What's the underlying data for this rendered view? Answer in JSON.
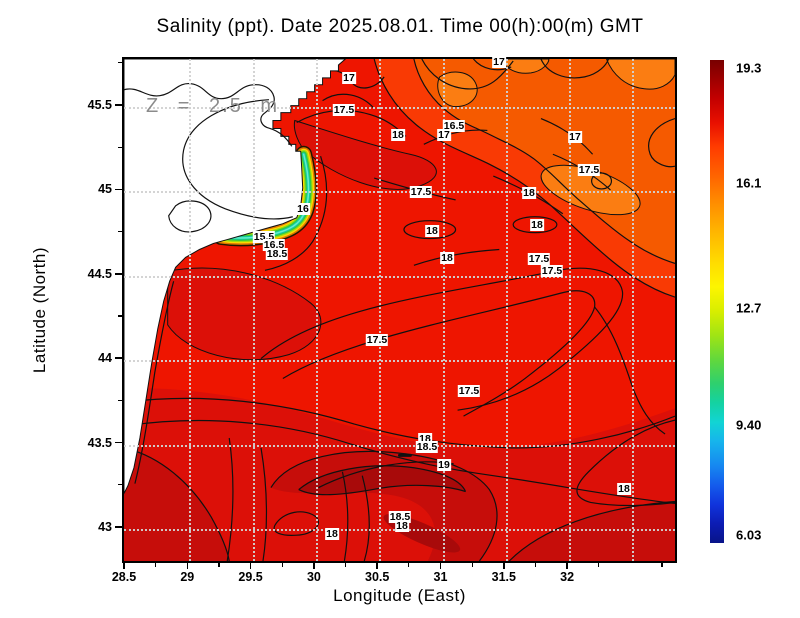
{
  "title": "Salinity (ppt). Date 2025.08.01. Time 00(h):00(m) GMT",
  "annotation": "Z = 2.5 m",
  "axes": {
    "x": {
      "label": "Longitude (East)",
      "ticks": [
        "28.5",
        "29",
        "29.5",
        "30",
        "30.5",
        "31",
        "31.5",
        "32"
      ]
    },
    "y": {
      "label": "Latitude (North)",
      "ticks": [
        "45.5",
        "45",
        "44.5",
        "44",
        "43.5",
        "43"
      ]
    }
  },
  "colorbar": {
    "ticks": [
      {
        "label": "19.3",
        "pos": 1.7
      },
      {
        "label": "16.1",
        "pos": 25.5
      },
      {
        "label": "12.7",
        "pos": 51.3
      },
      {
        "label": "9.40",
        "pos": 75.6
      },
      {
        "label": "6.03",
        "pos": 98.3
      }
    ]
  },
  "palette": {
    "sea_17_5_18": "#ee1500",
    "sea_18_18_5": "#dc1008",
    "sea_18_5_19": "#c60d0a",
    "sea_over_19": "#a80a0a",
    "sea_16_5_17": "#f55a00",
    "sea_16_16_5": "#fb7d12",
    "land": "#ffffff",
    "contour_line": "#111111",
    "grid_dots": "#d2d2d2"
  },
  "chart_data": {
    "type": "heatmap",
    "subtype": "filled-contour-map",
    "title": "Salinity (ppt). Date 2025.08.01. Time 00(h):00(m) GMT",
    "xlabel": "Longitude (East)",
    "ylabel": "Latitude (North)",
    "x_range": [
      28.5,
      32.9
    ],
    "y_range": [
      42.8,
      45.78
    ],
    "x_ticks": [
      28.5,
      29,
      29.5,
      30,
      30.5,
      31,
      31.5,
      32
    ],
    "y_ticks": [
      45.5,
      45,
      44.5,
      44,
      43.5,
      43
    ],
    "grid": "dotted, 0.5 degree spacing",
    "units": "ppt",
    "depth_annotation": "Z = 2.5 m",
    "contour_interval": 0.5,
    "colorbar_tick_values": [
      19.3,
      16.1,
      12.7,
      9.4,
      6.03
    ],
    "colorbar_orientation": "vertical-right",
    "field_summary": "Filled salinity contours of the western Black Sea: low-salinity Danube plume (15-16.5 ppt, green/yellow bands) along the NW coast, 16.5-17.5 ppt (orange) in the NE corner, 17.5-18.5 ppt (red) over most of the basin, and >18.5-19 ppt (dark red) in the south with an anticyclonic swirl near 30.8E 43.3N; white = land with coastline.",
    "contour_labels": [
      {
        "value": "17",
        "px": [
          225,
          19
        ],
        "lon": 30.28,
        "lat": 45.67
      },
      {
        "value": "17",
        "px": [
          375,
          3
        ],
        "lon": 31.46,
        "lat": 45.77
      },
      {
        "value": "17.5",
        "px": [
          220,
          51
        ],
        "lon": 30.24,
        "lat": 45.48
      },
      {
        "value": "18",
        "px": [
          274,
          76
        ],
        "lon": 30.66,
        "lat": 45.33
      },
      {
        "value": "16.5",
        "px": [
          330,
          67
        ],
        "lon": 31.11,
        "lat": 45.39
      },
      {
        "value": "17",
        "px": [
          320,
          76
        ],
        "lon": 31.03,
        "lat": 45.33
      },
      {
        "value": "17",
        "px": [
          451,
          78
        ],
        "lon": 32.06,
        "lat": 45.32
      },
      {
        "value": "17.5",
        "px": [
          465,
          111
        ],
        "lon": 32.17,
        "lat": 45.13
      },
      {
        "value": "18",
        "px": [
          405,
          134
        ],
        "lon": 31.7,
        "lat": 44.99
      },
      {
        "value": "17.5",
        "px": [
          297,
          133
        ],
        "lon": 30.85,
        "lat": 45.0
      },
      {
        "value": "16",
        "px": [
          179,
          150
        ],
        "lon": 29.91,
        "lat": 44.9
      },
      {
        "value": "18",
        "px": [
          413,
          166
        ],
        "lon": 31.76,
        "lat": 44.8
      },
      {
        "value": "18",
        "px": [
          308,
          172
        ],
        "lon": 30.93,
        "lat": 44.77
      },
      {
        "value": "15.5",
        "px": [
          140,
          178
        ],
        "lon": 29.61,
        "lat": 44.73
      },
      {
        "value": "16.5",
        "px": [
          150,
          186
        ],
        "lon": 29.69,
        "lat": 44.68
      },
      {
        "value": "18.5",
        "px": [
          153,
          195
        ],
        "lon": 29.71,
        "lat": 44.63
      },
      {
        "value": "18",
        "px": [
          323,
          199
        ],
        "lon": 31.05,
        "lat": 44.61
      },
      {
        "value": "17.5",
        "px": [
          415,
          200
        ],
        "lon": 31.78,
        "lat": 44.6
      },
      {
        "value": "17.5",
        "px": [
          428,
          212
        ],
        "lon": 31.88,
        "lat": 44.53
      },
      {
        "value": "17.5",
        "px": [
          253,
          281
        ],
        "lon": 30.5,
        "lat": 44.12
      },
      {
        "value": "17.5",
        "px": [
          345,
          332
        ],
        "lon": 31.23,
        "lat": 43.82
      },
      {
        "value": "18",
        "px": [
          301,
          380
        ],
        "lon": 30.88,
        "lat": 43.53
      },
      {
        "value": "18.5",
        "px": [
          303,
          388
        ],
        "lon": 30.89,
        "lat": 43.5
      },
      {
        "value": "19",
        "px": [
          320,
          406
        ],
        "lon": 31.03,
        "lat": 43.38
      },
      {
        "value": "18",
        "px": [
          500,
          430
        ],
        "lon": 32.45,
        "lat": 43.24
      },
      {
        "value": "18.5",
        "px": [
          276,
          458
        ],
        "lon": 30.68,
        "lat": 43.07
      },
      {
        "value": "18",
        "px": [
          278,
          467
        ],
        "lon": 30.7,
        "lat": 43.02
      },
      {
        "value": "18",
        "px": [
          208,
          475
        ],
        "lon": 30.14,
        "lat": 42.97
      }
    ]
  }
}
